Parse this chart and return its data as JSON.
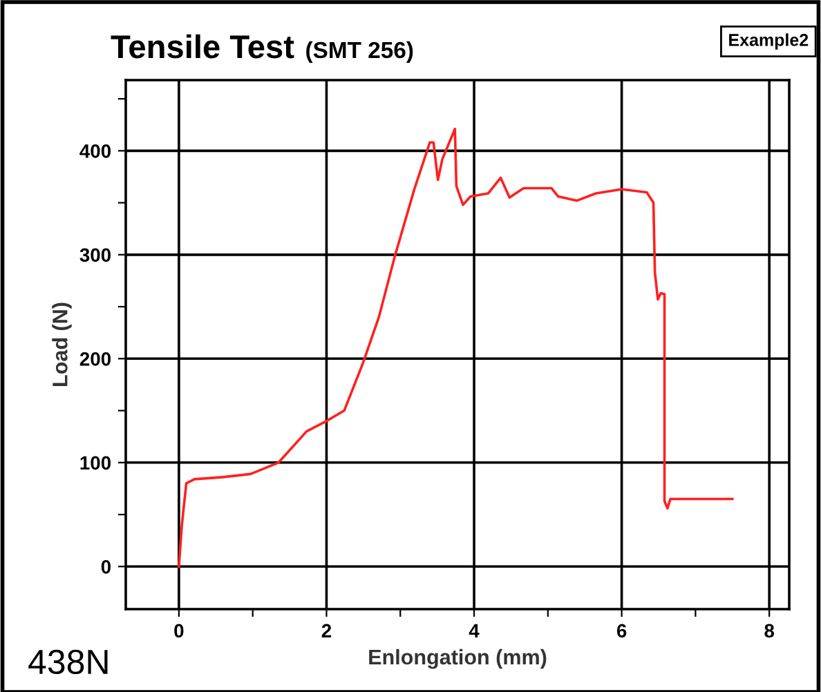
{
  "chart_data": {
    "type": "line",
    "title": "Tensile Test",
    "subtitle": "(SMT 256)",
    "xlabel": "Enlongation (mm)",
    "ylabel": "Load (N)",
    "annotations": [
      "Example2",
      "438N"
    ],
    "xlim": [
      -0.72,
      8.27
    ],
    "ylim": [
      -41,
      468
    ],
    "xticks": [
      0,
      {
        "value": 1,
        "label": null
      },
      2,
      {
        "value": 3,
        "label": null
      },
      4,
      {
        "value": 5,
        "label": null
      },
      6,
      {
        "value": 7,
        "label": null
      },
      8
    ],
    "yticks": [
      0,
      {
        "value": 50,
        "label": null
      },
      100,
      {
        "value": 150,
        "label": null
      },
      200,
      {
        "value": 250,
        "label": null
      },
      300,
      {
        "value": 350,
        "label": null
      },
      400,
      {
        "value": 450,
        "label": null
      }
    ],
    "grid": true,
    "marker": "none",
    "line_style": "solid",
    "series": [
      {
        "color": "#ff2020",
        "x": [
          0,
          0.04,
          0.1,
          0.21,
          0.59,
          0.97,
          1.35,
          1.73,
          2.0,
          2.24,
          2.49,
          2.71,
          2.92,
          3.19,
          3.4,
          3.45,
          3.51,
          3.57,
          3.74,
          3.76,
          3.85,
          3.95,
          4.19,
          4.36,
          4.48,
          4.67,
          5.05,
          5.14,
          5.39,
          5.65,
          6.0,
          6.34,
          6.43,
          6.45,
          6.49,
          6.53,
          6.58,
          6.58,
          6.62,
          6.66,
          7.5
        ],
        "values": [
          0,
          40,
          80,
          84,
          86,
          89,
          100,
          130,
          140,
          150,
          195,
          240,
          297,
          363,
          408,
          408,
          372,
          392,
          421,
          366,
          348,
          356,
          359,
          374,
          355,
          364,
          364,
          356,
          352,
          359,
          363,
          360,
          350,
          283,
          257,
          263,
          262,
          63,
          56,
          65,
          65
        ]
      }
    ]
  }
}
